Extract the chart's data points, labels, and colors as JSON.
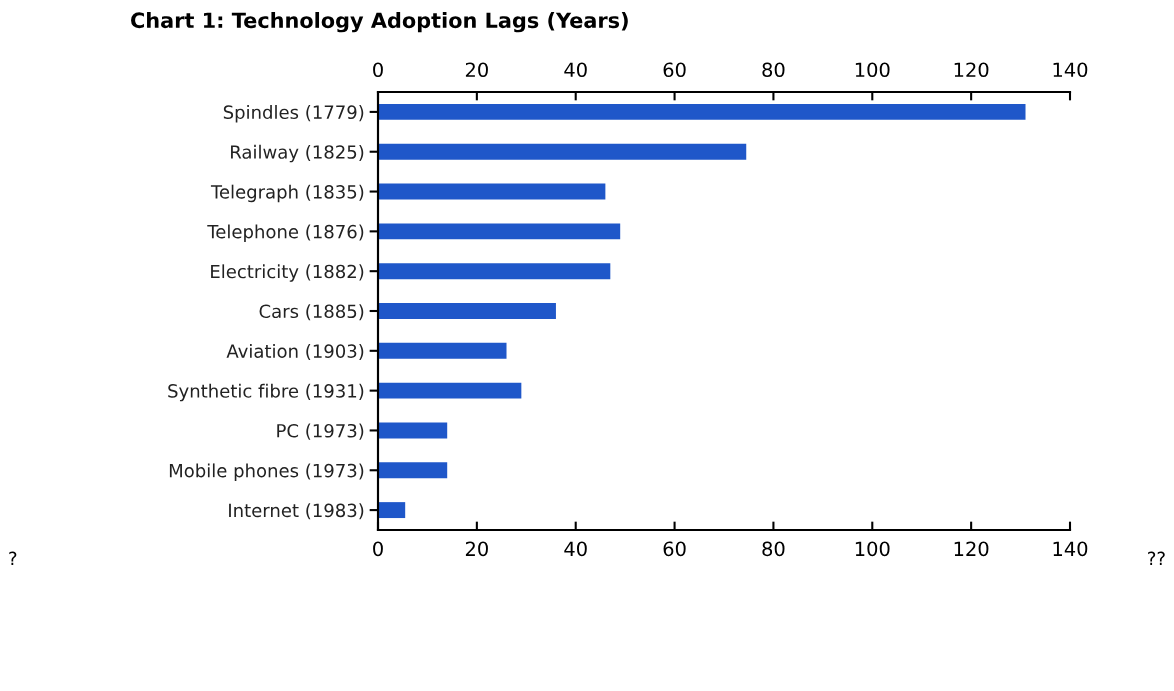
{
  "chart_data": {
    "type": "bar",
    "orientation": "horizontal",
    "title": "Chart 1: Technology Adoption Lags (Years)",
    "categories": [
      "Spindles (1779)",
      "Railway (1825)",
      "Telegraph (1835)",
      "Telephone (1876)",
      "Electricity (1882)",
      "Cars (1885)",
      "Aviation (1903)",
      "Synthetic fibre (1931)",
      "PC (1973)",
      "Mobile phones (1973)",
      "Internet (1983)"
    ],
    "values": [
      131,
      74.5,
      46,
      49,
      47,
      36,
      26,
      29,
      14,
      14,
      5.5
    ],
    "color": "#1f57c9",
    "xlim": [
      0,
      140
    ],
    "xticks": [
      0,
      20,
      40,
      60,
      80,
      100,
      120,
      140
    ],
    "x2lim": [
      0,
      140
    ],
    "x2ticks": [
      0,
      20,
      40,
      60,
      80,
      100,
      120,
      140
    ],
    "annotations": [
      "?",
      "??"
    ],
    "grid": false,
    "legend": false
  }
}
